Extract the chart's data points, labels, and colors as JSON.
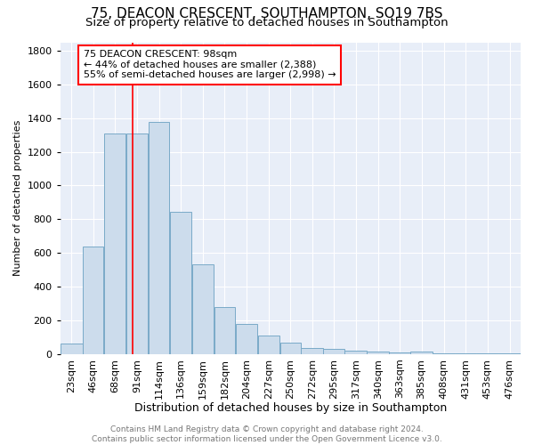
{
  "title": "75, DEACON CRESCENT, SOUTHAMPTON, SO19 7BS",
  "subtitle": "Size of property relative to detached houses in Southampton",
  "xlabel": "Distribution of detached houses by size in Southampton",
  "ylabel": "Number of detached properties",
  "bar_color": "#ccdcec",
  "bar_edge_color": "#7aaac8",
  "background_color": "#e8eef8",
  "categories": [
    "23sqm",
    "46sqm",
    "68sqm",
    "91sqm",
    "114sqm",
    "136sqm",
    "159sqm",
    "182sqm",
    "204sqm",
    "227sqm",
    "250sqm",
    "272sqm",
    "295sqm",
    "317sqm",
    "340sqm",
    "363sqm",
    "385sqm",
    "408sqm",
    "431sqm",
    "453sqm",
    "476sqm"
  ],
  "values": [
    60,
    640,
    1310,
    1310,
    1380,
    845,
    530,
    280,
    180,
    108,
    68,
    38,
    30,
    22,
    14,
    10,
    14,
    2,
    2,
    2,
    2
  ],
  "bin_edges": [
    23,
    46,
    68,
    91,
    114,
    136,
    159,
    182,
    204,
    227,
    250,
    272,
    295,
    317,
    340,
    363,
    385,
    408,
    431,
    453,
    476,
    499
  ],
  "red_line_x": 98,
  "ylim": [
    0,
    1850
  ],
  "yticks": [
    0,
    200,
    400,
    600,
    800,
    1000,
    1200,
    1400,
    1600,
    1800
  ],
  "annotation_line1": "75 DEACON CRESCENT: 98sqm",
  "annotation_line2": "← 44% of detached houses are smaller (2,388)",
  "annotation_line3": "55% of semi-detached houses are larger (2,998) →",
  "annotation_box_color": "white",
  "annotation_box_edge": "red",
  "footer_text": "Contains HM Land Registry data © Crown copyright and database right 2024.\nContains public sector information licensed under the Open Government Licence v3.0.",
  "grid_color": "white",
  "title_fontsize": 11,
  "subtitle_fontsize": 9.5,
  "xlabel_fontsize": 9,
  "ylabel_fontsize": 8,
  "tick_fontsize": 8,
  "annotation_fontsize": 8,
  "footer_fontsize": 6.5
}
